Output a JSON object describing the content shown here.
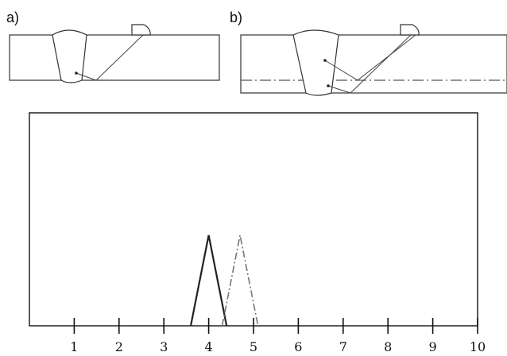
{
  "panels": [
    {
      "label": "a)"
    },
    {
      "label": "b)"
    }
  ],
  "chart_data": {
    "type": "line",
    "xlim": [
      0,
      10
    ],
    "x_ticks": [
      "1",
      "2",
      "3",
      "4",
      "5",
      "6",
      "7",
      "8",
      "9",
      "10"
    ],
    "grid": false,
    "series": [
      {
        "style": "solid",
        "points": [
          [
            3.6,
            0
          ],
          [
            4.0,
            1
          ],
          [
            4.4,
            0
          ]
        ],
        "color": "#222222"
      },
      {
        "style": "dash-dot",
        "points": [
          [
            4.3,
            0
          ],
          [
            4.7,
            1
          ],
          [
            5.1,
            0
          ]
        ],
        "color": "#777777"
      }
    ]
  }
}
